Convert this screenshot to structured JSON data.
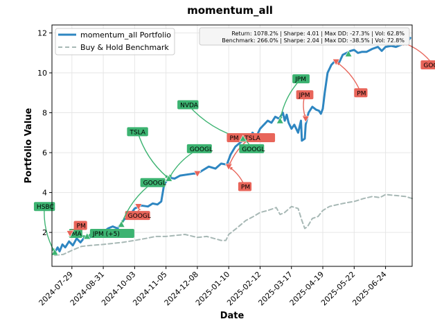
{
  "chart_data": {
    "type": "line",
    "title": "momentum_all",
    "xlabel": "Date",
    "ylabel": "Portfolio Value",
    "xlim": [
      "2024-07-08",
      "2025-07-22"
    ],
    "ylim": [
      0.3,
      12.4
    ],
    "grid": true,
    "legend_position": "top-left",
    "x_ticks": [
      "2024-07-29",
      "2024-08-31",
      "2024-10-03",
      "2024-11-05",
      "2024-12-08",
      "2025-01-10",
      "2025-02-12",
      "2025-03-17",
      "2025-04-19",
      "2025-05-22",
      "2025-06-24"
    ],
    "y_ticks": [
      2,
      4,
      6,
      8,
      10,
      12
    ],
    "stats_box": {
      "line1": "Return: 1078.2% | Sharpe: 4.01 | Max DD: -27.3% | Vol: 62.8%",
      "line2": "Benchmark: 266.0% | Sharpe: 2.04 | Max DD: -38.5% | Vol: 72.8%"
    },
    "series": [
      {
        "name": "momentum_all Portfolio",
        "color": "#2e86c1",
        "style": "solid",
        "points": [
          [
            "2024-07-11",
            1.0
          ],
          [
            "2024-07-14",
            1.25
          ],
          [
            "2024-07-16",
            1.05
          ],
          [
            "2024-07-19",
            1.4
          ],
          [
            "2024-07-22",
            1.25
          ],
          [
            "2024-07-26",
            1.55
          ],
          [
            "2024-07-30",
            1.35
          ],
          [
            "2024-08-03",
            1.7
          ],
          [
            "2024-08-07",
            1.5
          ],
          [
            "2024-08-12",
            1.8
          ],
          [
            "2024-08-17",
            1.75
          ],
          [
            "2024-08-23",
            2.0
          ],
          [
            "2024-08-27",
            1.85
          ],
          [
            "2024-09-01",
            2.05
          ],
          [
            "2024-09-05",
            2.2
          ],
          [
            "2024-09-10",
            2.3
          ],
          [
            "2024-09-15",
            2.2
          ],
          [
            "2024-09-18",
            2.4
          ],
          [
            "2024-09-22",
            2.65
          ],
          [
            "2024-09-27",
            2.8
          ],
          [
            "2024-10-03",
            3.2
          ],
          [
            "2024-10-10",
            3.35
          ],
          [
            "2024-10-17",
            3.3
          ],
          [
            "2024-10-22",
            3.45
          ],
          [
            "2024-10-27",
            3.4
          ],
          [
            "2024-10-31",
            3.55
          ],
          [
            "2024-11-03",
            4.4
          ],
          [
            "2024-11-08",
            4.75
          ],
          [
            "2024-11-14",
            4.7
          ],
          [
            "2024-11-20",
            4.85
          ],
          [
            "2024-11-27",
            4.9
          ],
          [
            "2024-12-04",
            4.95
          ],
          [
            "2024-12-08",
            4.95
          ],
          [
            "2024-12-13",
            5.1
          ],
          [
            "2024-12-20",
            5.3
          ],
          [
            "2024-12-27",
            5.2
          ],
          [
            "2025-01-02",
            5.45
          ],
          [
            "2025-01-08",
            5.4
          ],
          [
            "2025-01-12",
            5.9
          ],
          [
            "2025-01-17",
            6.3
          ],
          [
            "2025-01-22",
            6.5
          ],
          [
            "2025-01-27",
            6.7
          ],
          [
            "2025-02-01",
            6.6
          ],
          [
            "2025-02-04",
            7.0
          ],
          [
            "2025-02-08",
            6.8
          ],
          [
            "2025-02-12",
            7.2
          ],
          [
            "2025-02-16",
            7.4
          ],
          [
            "2025-02-20",
            7.6
          ],
          [
            "2025-02-24",
            7.5
          ],
          [
            "2025-02-28",
            7.8
          ],
          [
            "2025-03-04",
            7.7
          ],
          [
            "2025-03-08",
            8.0
          ],
          [
            "2025-03-10",
            7.6
          ],
          [
            "2025-03-12",
            7.9
          ],
          [
            "2025-03-14",
            7.5
          ],
          [
            "2025-03-17",
            7.2
          ],
          [
            "2025-03-20",
            7.4
          ],
          [
            "2025-03-24",
            7.0
          ],
          [
            "2025-03-27",
            7.6
          ],
          [
            "2025-03-28",
            6.6
          ],
          [
            "2025-03-31",
            6.7
          ],
          [
            "2025-04-01",
            7.4
          ],
          [
            "2025-04-04",
            8.0
          ],
          [
            "2025-04-08",
            8.3
          ],
          [
            "2025-04-12",
            8.15
          ],
          [
            "2025-04-15",
            8.1
          ],
          [
            "2025-04-17",
            7.95
          ],
          [
            "2025-04-19",
            8.2
          ],
          [
            "2025-04-21",
            9.0
          ],
          [
            "2025-04-24",
            10.0
          ],
          [
            "2025-04-28",
            10.4
          ],
          [
            "2025-05-02",
            10.6
          ],
          [
            "2025-05-06",
            10.5
          ],
          [
            "2025-05-10",
            10.9
          ],
          [
            "2025-05-14",
            11.0
          ],
          [
            "2025-05-18",
            11.1
          ],
          [
            "2025-05-22",
            11.15
          ],
          [
            "2025-05-26",
            11.0
          ],
          [
            "2025-05-30",
            11.05
          ],
          [
            "2025-06-04",
            11.05
          ],
          [
            "2025-06-10",
            11.2
          ],
          [
            "2025-06-16",
            11.3
          ],
          [
            "2025-06-20",
            11.1
          ],
          [
            "2025-06-24",
            11.3
          ],
          [
            "2025-06-30",
            11.35
          ],
          [
            "2025-07-05",
            11.3
          ],
          [
            "2025-07-10",
            11.4
          ],
          [
            "2025-07-16",
            11.5
          ],
          [
            "2025-07-20",
            11.75
          ]
        ]
      },
      {
        "name": "Buy & Hold Benchmark",
        "color": "#a7b8b5",
        "style": "dashed",
        "points": [
          [
            "2024-07-11",
            0.85
          ],
          [
            "2024-07-20",
            0.9
          ],
          [
            "2024-07-29",
            1.1
          ],
          [
            "2024-08-08",
            1.3
          ],
          [
            "2024-08-18",
            1.35
          ],
          [
            "2024-08-31",
            1.4
          ],
          [
            "2024-09-10",
            1.45
          ],
          [
            "2024-09-20",
            1.5
          ],
          [
            "2024-10-03",
            1.6
          ],
          [
            "2024-10-15",
            1.7
          ],
          [
            "2024-10-25",
            1.8
          ],
          [
            "2024-11-05",
            1.8
          ],
          [
            "2024-11-15",
            1.85
          ],
          [
            "2024-11-25",
            1.9
          ],
          [
            "2024-12-08",
            1.75
          ],
          [
            "2024-12-18",
            1.8
          ],
          [
            "2025-01-02",
            1.6
          ],
          [
            "2025-01-07",
            1.6
          ],
          [
            "2025-01-10",
            1.9
          ],
          [
            "2025-01-18",
            2.2
          ],
          [
            "2025-01-28",
            2.6
          ],
          [
            "2025-02-05",
            2.8
          ],
          [
            "2025-02-12",
            3.0
          ],
          [
            "2025-02-20",
            3.1
          ],
          [
            "2025-03-01",
            3.25
          ],
          [
            "2025-03-05",
            2.9
          ],
          [
            "2025-03-10",
            3.0
          ],
          [
            "2025-03-17",
            3.3
          ],
          [
            "2025-03-24",
            3.2
          ],
          [
            "2025-03-28",
            2.6
          ],
          [
            "2025-03-31",
            2.2
          ],
          [
            "2025-04-03",
            2.3
          ],
          [
            "2025-04-08",
            2.7
          ],
          [
            "2025-04-14",
            2.8
          ],
          [
            "2025-04-19",
            3.1
          ],
          [
            "2025-04-26",
            3.3
          ],
          [
            "2025-05-05",
            3.4
          ],
          [
            "2025-05-15",
            3.5
          ],
          [
            "2025-05-22",
            3.55
          ],
          [
            "2025-06-01",
            3.7
          ],
          [
            "2025-06-10",
            3.8
          ],
          [
            "2025-06-18",
            3.75
          ],
          [
            "2025-06-24",
            3.9
          ],
          [
            "2025-07-05",
            3.85
          ],
          [
            "2025-07-15",
            3.8
          ],
          [
            "2025-07-22",
            3.7
          ]
        ]
      }
    ],
    "trade_markers": [
      {
        "side": "buy",
        "date": "2024-07-11",
        "value": 1.0
      },
      {
        "side": "buy",
        "date": "2024-08-14",
        "value": 1.8
      },
      {
        "side": "sell",
        "date": "2024-07-27",
        "value": 1.95
      },
      {
        "side": "buy",
        "date": "2024-09-19",
        "value": 2.4
      },
      {
        "side": "sell",
        "date": "2024-10-07",
        "value": 3.3
      },
      {
        "side": "buy",
        "date": "2024-11-08",
        "value": 4.7
      },
      {
        "side": "sell",
        "date": "2024-12-08",
        "value": 4.95
      },
      {
        "side": "sell",
        "date": "2025-01-10",
        "value": 5.3
      },
      {
        "side": "buy",
        "date": "2025-01-25",
        "value": 6.7
      },
      {
        "side": "buy",
        "date": "2025-03-05",
        "value": 7.6
      },
      {
        "side": "sell",
        "date": "2025-04-01",
        "value": 7.7
      },
      {
        "side": "sell",
        "date": "2025-05-03",
        "value": 10.55
      },
      {
        "side": "buy",
        "date": "2025-05-16",
        "value": 10.95
      },
      {
        "side": "sell",
        "date": "2025-07-13",
        "value": 11.5
      }
    ],
    "annotations": [
      {
        "label": "HSBC",
        "side": "buy",
        "box": [
          "2024-06-19",
          3.3
        ],
        "target": [
          "2024-07-11",
          1.0
        ]
      },
      {
        "label": "MA",
        "side": "buy",
        "box": [
          "2024-07-26",
          1.95
        ],
        "target": [
          "2024-08-14",
          1.8
        ]
      },
      {
        "label": "JPM   (+5)",
        "side": "buy",
        "box": [
          "2024-08-17",
          1.95
        ],
        "target": [
          "2024-08-14",
          1.8
        ]
      },
      {
        "label": "PM",
        "side": "sell",
        "box": [
          "2024-07-31",
          2.35
        ],
        "target": [
          "2024-07-27",
          1.95
        ]
      },
      {
        "label": "GOOGL",
        "side": "sell",
        "box": [
          "2024-09-23",
          2.85
        ],
        "target": [
          "2024-10-07",
          3.3
        ]
      },
      {
        "label": "GOOGL",
        "side": "buy",
        "box": [
          "2024-10-09",
          4.5
        ],
        "target": [
          "2024-09-19",
          2.4
        ]
      },
      {
        "label": "TSLA",
        "side": "buy",
        "box": [
          "2024-09-25",
          7.05
        ],
        "target": [
          "2024-11-08",
          4.7
        ]
      },
      {
        "label": "GOOGL",
        "side": "buy",
        "box": [
          "2024-11-27",
          6.2
        ],
        "target": [
          "2024-11-08",
          4.7
        ]
      },
      {
        "label": "NVDA",
        "side": "buy",
        "box": [
          "2024-11-17",
          8.4
        ],
        "target": [
          "2025-01-25",
          6.7
        ]
      },
      {
        "label": "PM   , TSLA",
        "side": "sell",
        "box": [
          "2025-01-08",
          6.75
        ],
        "target": [
          "2025-01-10",
          5.3
        ]
      },
      {
        "label": "GOOGL",
        "side": "buy",
        "box": [
          "2025-01-21",
          6.2
        ],
        "target": [
          "2025-01-25",
          6.7
        ]
      },
      {
        "label": "PM",
        "side": "sell",
        "box": [
          "2025-01-20",
          4.3
        ],
        "target": [
          "2025-01-10",
          5.3
        ]
      },
      {
        "label": "JPM",
        "side": "buy",
        "box": [
          "2025-03-18",
          9.7
        ],
        "target": [
          "2025-03-05",
          7.6
        ]
      },
      {
        "label": "JPM",
        "side": "sell",
        "box": [
          "2025-03-22",
          8.9
        ],
        "target": [
          "2025-04-01",
          7.7
        ]
      },
      {
        "label": "PM",
        "side": "sell",
        "box": [
          "2025-05-22",
          9.0
        ],
        "target": [
          "2025-05-03",
          10.55
        ]
      },
      {
        "label": "GOOGL",
        "side": "sell",
        "box": [
          "2025-07-31",
          10.4
        ],
        "target": [
          "2025-07-13",
          11.5
        ]
      }
    ]
  }
}
